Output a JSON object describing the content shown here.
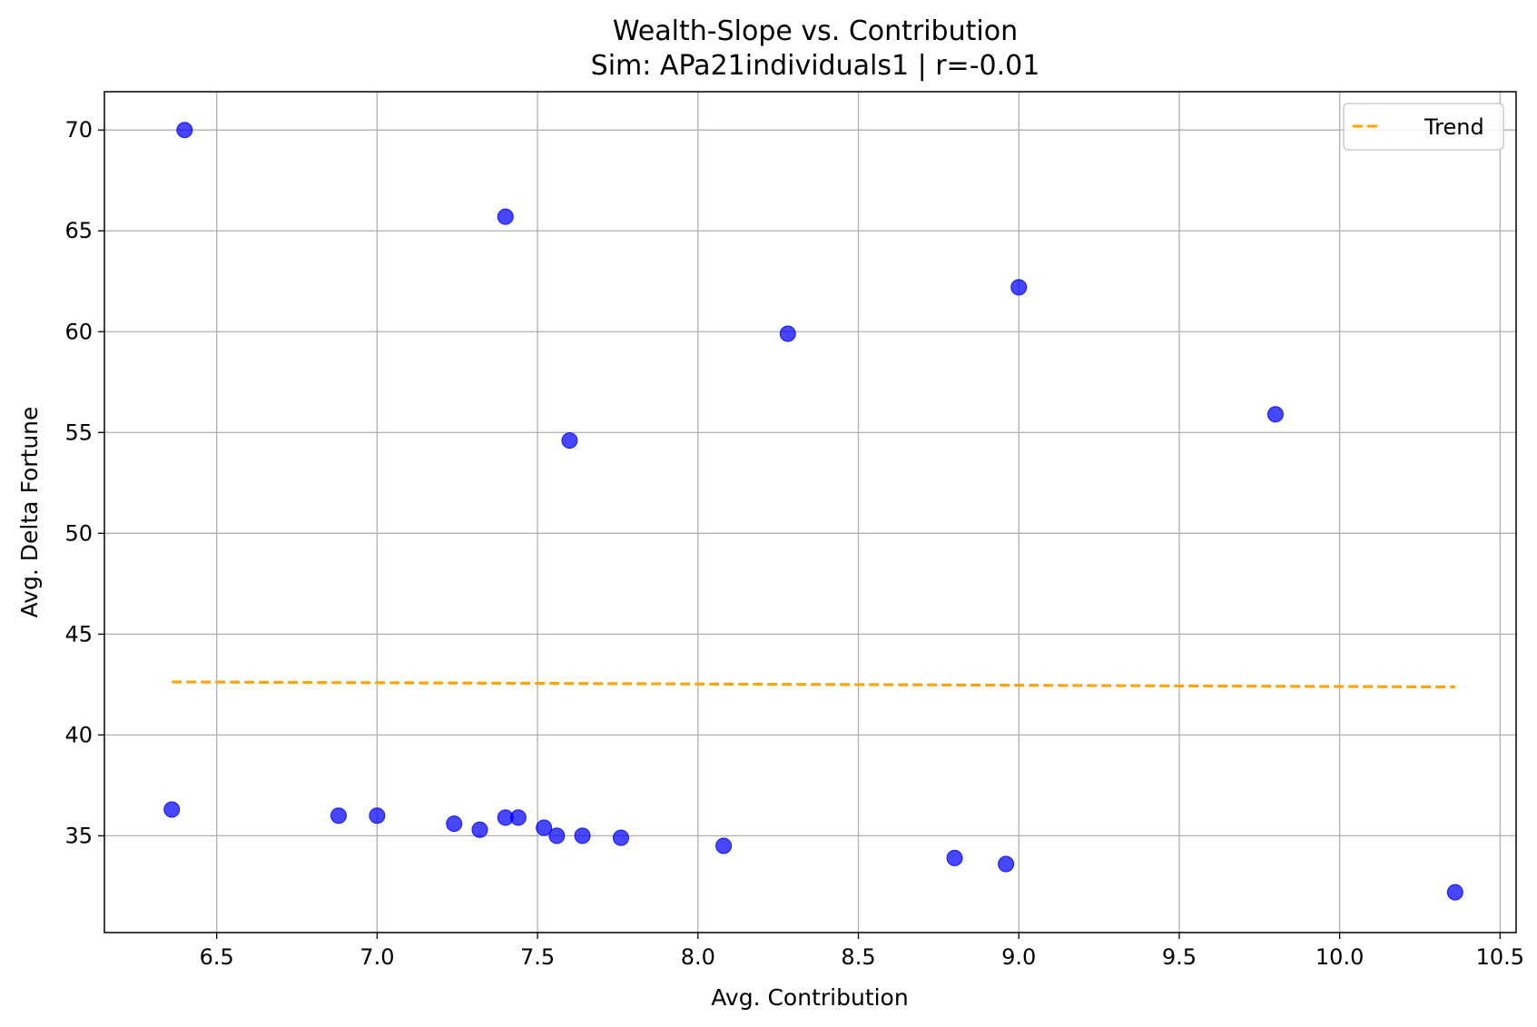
{
  "chart_data": {
    "type": "scatter",
    "title": "Wealth-Slope vs. Contribution",
    "subtitle": "Sim: APa21individuals1 | r=-0.01",
    "xlabel": "Avg. Contribution",
    "ylabel": "Avg. Delta Fortune",
    "xlim": [
      6.15,
      10.55
    ],
    "ylim": [
      30.2,
      71.9
    ],
    "xticks": [
      6.5,
      7.0,
      7.5,
      8.0,
      8.5,
      9.0,
      9.5,
      10.0,
      10.5
    ],
    "xtick_labels": [
      "6.5",
      "7.0",
      "7.5",
      "8.0",
      "8.5",
      "9.0",
      "9.5",
      "10.0",
      "10.5"
    ],
    "yticks": [
      35,
      40,
      45,
      50,
      55,
      60,
      65,
      70
    ],
    "ytick_labels": [
      "35",
      "40",
      "45",
      "50",
      "55",
      "60",
      "65",
      "70"
    ],
    "grid": true,
    "legend_position": "top-right",
    "colors": {
      "points": "#0000ff",
      "trend": "#ffa500"
    },
    "points": {
      "x": [
        6.4,
        7.4,
        9.0,
        8.28,
        7.6,
        9.8,
        6.36,
        6.88,
        7.0,
        7.24,
        7.32,
        7.4,
        7.44,
        7.52,
        7.56,
        7.64,
        7.76,
        8.08,
        8.8,
        8.96,
        10.36
      ],
      "y": [
        70.0,
        65.7,
        62.2,
        59.9,
        54.6,
        55.9,
        36.3,
        36.0,
        36.0,
        35.6,
        35.3,
        35.9,
        35.9,
        35.4,
        35.0,
        35.0,
        34.9,
        34.5,
        33.9,
        33.6,
        32.2
      ]
    },
    "series": [
      {
        "name": "Trend",
        "style": "dashed",
        "x": [
          6.36,
          10.36
        ],
        "y": [
          42.63,
          42.38
        ]
      }
    ]
  }
}
